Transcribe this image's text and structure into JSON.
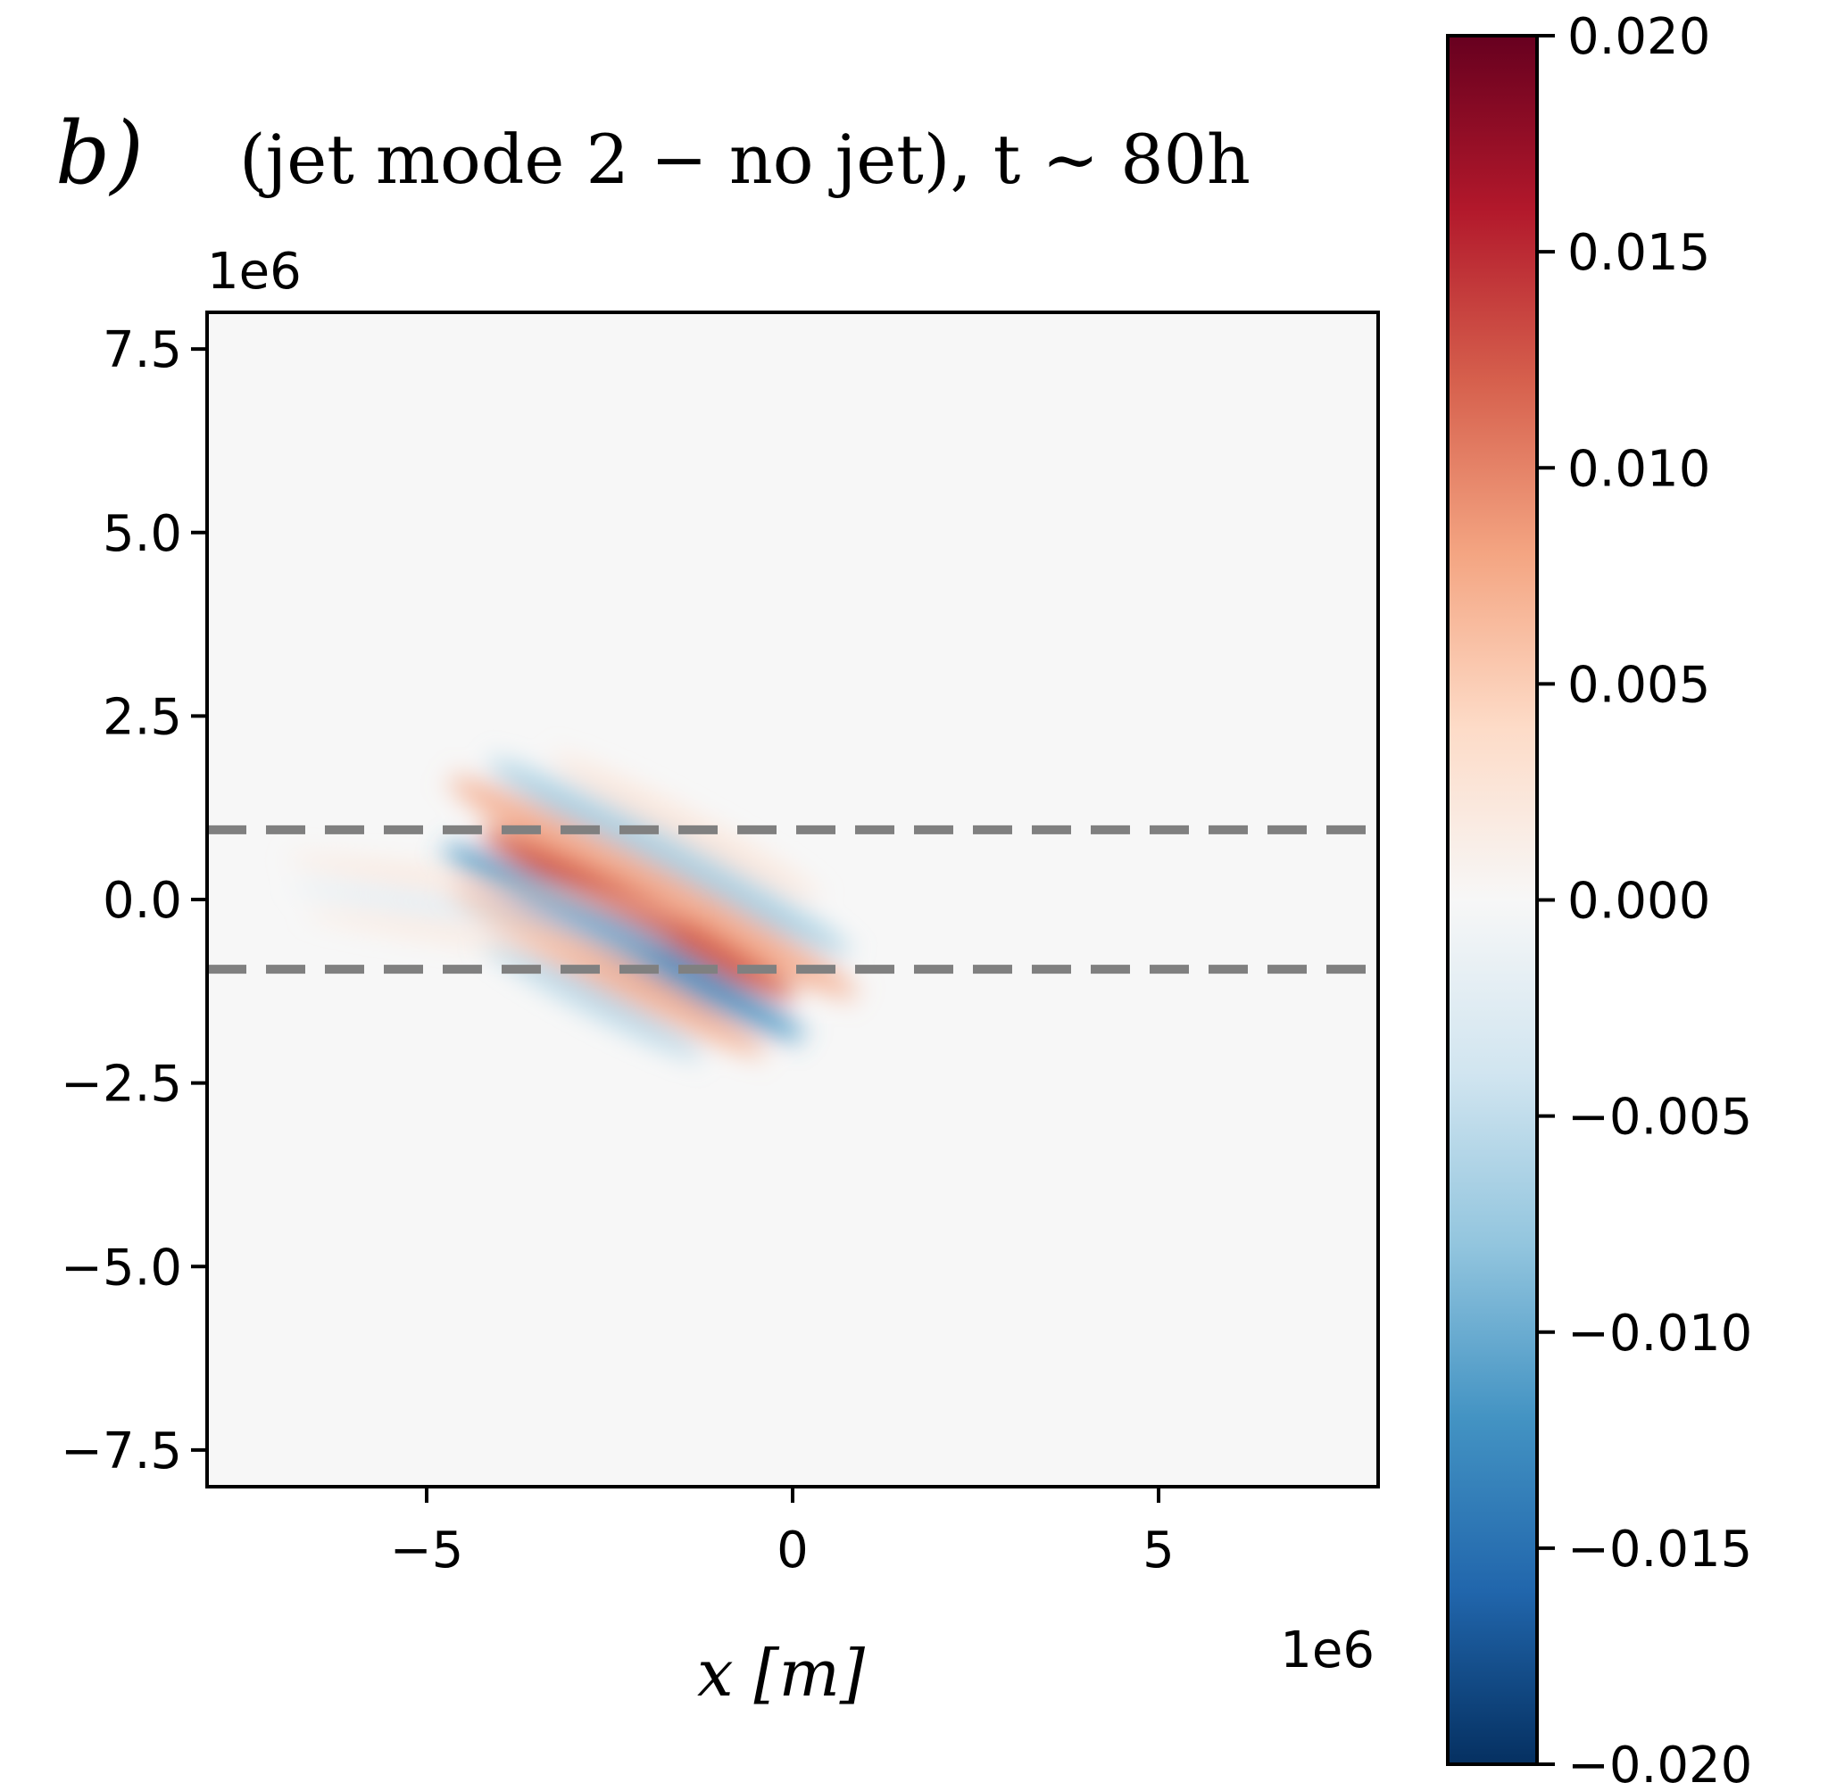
{
  "figure": {
    "panel_label": "b)",
    "title": "(jet mode 2 − no jet), t ∼ 80h"
  },
  "chart_data": {
    "type": "heatmap",
    "title": "(jet mode 2 − no jet), t ∼ 80h",
    "xlabel": "x [m]",
    "ylabel": "",
    "x_offset_label": "1e6",
    "y_offset_label": "1e6",
    "xlim": [
      -8.0,
      8.0
    ],
    "ylim": [
      -8.0,
      8.0
    ],
    "xticks": [
      -5,
      0,
      5
    ],
    "xtick_labels": [
      "−5",
      "0",
      "5"
    ],
    "yticks": [
      7.5,
      5.0,
      2.5,
      0.0,
      -2.5,
      -5.0,
      -7.5
    ],
    "ytick_labels": [
      "7.5",
      "5.0",
      "2.5",
      "0.0",
      "−2.5",
      "−5.0",
      "−7.5"
    ],
    "grid": false,
    "colormap": "RdBu_r",
    "background_color": "#f7f7f7",
    "dashed_lines": {
      "y_values": [
        0.95,
        -0.95
      ],
      "color": "#808080",
      "style": "dashed"
    },
    "anomaly": {
      "description": "tilted wave packet of alternating red/blue bands",
      "center_x": -2.1,
      "center_y": -0.2,
      "extent_x": [
        -4.8,
        -0.2
      ],
      "extent_y": [
        -0.9,
        0.7
      ],
      "peak_positive": 0.012,
      "peak_negative": -0.011
    },
    "colorbar": {
      "vmin": -0.02,
      "vmax": 0.02,
      "ticks": [
        0.02,
        0.015,
        0.01,
        0.005,
        0.0,
        -0.005,
        -0.01,
        -0.015,
        -0.02
      ],
      "tick_labels": [
        "0.020",
        "0.015",
        "0.010",
        "0.005",
        "0.000",
        "−0.005",
        "−0.010",
        "−0.015",
        "−0.020"
      ],
      "colors": [
        "#67001f",
        "#b2182b",
        "#d6604d",
        "#f4a582",
        "#fddbc7",
        "#f7f7f7",
        "#d1e5f0",
        "#92c5de",
        "#4393c3",
        "#2166ac",
        "#053061"
      ]
    }
  }
}
